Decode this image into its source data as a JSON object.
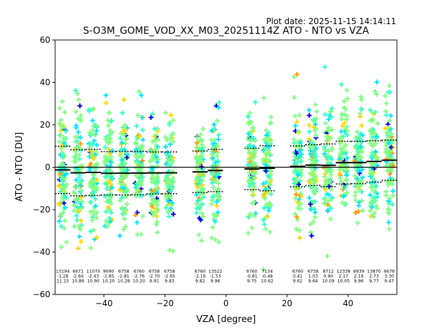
{
  "header": {
    "plot_date": "Plot date: 2025-11-15 14:14:11"
  },
  "chart_data": {
    "type": "scatter",
    "title": "S-O3M_GOME_VOD_XX_M03_20251114Z ATO - NTO vs VZA",
    "xlabel": "VZA [degree]",
    "ylabel": "ATO - NTO [DU]",
    "xlim": [
      -56,
      56
    ],
    "ylim": [
      -60,
      60
    ],
    "xticks": [
      -40,
      -20,
      0,
      20,
      40
    ],
    "yticks": [
      -60,
      -40,
      -20,
      0,
      20,
      40,
      60
    ],
    "grid": false,
    "legend": "none",
    "point_colors": [
      "#80ff80",
      "#33ffcc",
      "#00e5ff",
      "#ffd700",
      "#ff9900",
      "#0000dd"
    ],
    "zero_line": 0,
    "bins": [
      {
        "vza": -53.5,
        "n": "13194",
        "mean": "-1.28",
        "std": "11.15"
      },
      {
        "vza": -48.5,
        "n": "6671",
        "mean": "-2.64",
        "std": "10.86"
      },
      {
        "vza": -43.5,
        "n": "11070",
        "mean": "-2.43",
        "std": "10.90"
      },
      {
        "vza": -38.5,
        "n": "9090",
        "mean": "-2.85",
        "std": "10.20"
      },
      {
        "vza": -33.5,
        "n": "6758",
        "mean": "-2.81",
        "std": "10.28"
      },
      {
        "vza": -28.5,
        "n": "6760",
        "mean": "-2.76",
        "std": "10.20"
      },
      {
        "vza": -23.5,
        "n": "6758",
        "mean": "-2.70",
        "std": "9.91"
      },
      {
        "vza": -18.5,
        "n": "6758",
        "mean": "-2.65",
        "std": "9.83"
      },
      {
        "vza": -8.5,
        "n": "6760",
        "mean": "-2.19",
        "std": "9.82"
      },
      {
        "vza": -3.5,
        "n": "13522",
        "mean": "-1.53",
        "std": "9.96"
      },
      {
        "vza": 8.5,
        "n": "6760",
        "mean": "-0.81",
        "std": "9.75"
      },
      {
        "vza": 13.5,
        "n": "7134",
        "mean": "-0.48",
        "std": "10.62"
      },
      {
        "vza": 23.5,
        "n": "6760",
        "mean": "0.41",
        "std": "9.62"
      },
      {
        "vza": 28.5,
        "n": "6758",
        "mean": "1.03",
        "std": "9.64"
      },
      {
        "vza": 33.5,
        "n": "8712",
        "mean": "0.90",
        "std": "10.09"
      },
      {
        "vza": 38.5,
        "n": "12338",
        "mean": "2.17",
        "std": "10.05"
      },
      {
        "vza": 43.5,
        "n": "6939",
        "mean": "2.19",
        "std": "9.96"
      },
      {
        "vza": 48.5,
        "n": "13870",
        "mean": "2.73",
        "std": "9.77"
      },
      {
        "vza": 53.5,
        "n": "6676",
        "mean": "3.30",
        "std": "9.47"
      }
    ]
  }
}
